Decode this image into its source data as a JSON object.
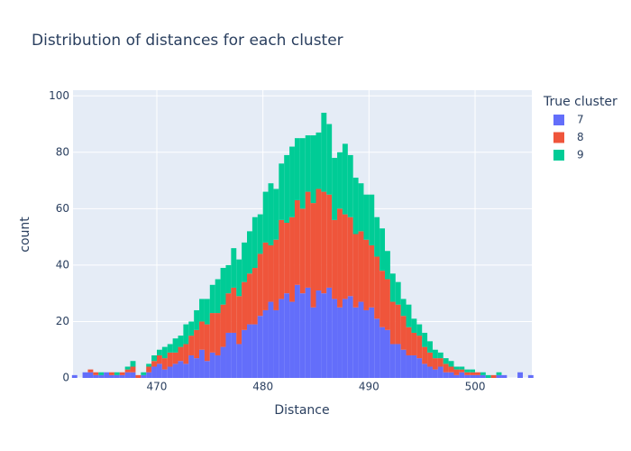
{
  "chart_data": {
    "type": "histogram",
    "title": "Distribution of distances for each cluster",
    "x_label": "Distance",
    "y_label": "count",
    "legend_title": "True cluster",
    "legend_position": "right",
    "grid": true,
    "barmode": "stack",
    "bins": [
      462,
      462.5,
      463,
      463.5,
      464,
      464.5,
      465,
      465.5,
      466,
      466.5,
      467,
      467.5,
      468,
      468.5,
      469,
      469.5,
      470,
      470.5,
      471,
      471.5,
      472,
      472.5,
      473,
      473.5,
      474,
      474.5,
      475,
      475.5,
      476,
      476.5,
      477,
      477.5,
      478,
      478.5,
      479,
      479.5,
      480,
      480.5,
      481,
      481.5,
      482,
      482.5,
      483,
      483.5,
      484,
      484.5,
      485,
      485.5,
      486,
      486.5,
      487,
      487.5,
      488,
      488.5,
      489,
      489.5,
      490,
      490.5,
      491,
      491.5,
      492,
      492.5,
      493,
      493.5,
      494,
      494.5,
      495,
      495.5,
      496,
      496.5,
      497,
      497.5,
      498,
      498.5,
      499,
      499.5,
      500,
      500.5,
      501,
      501.5,
      502,
      502.5,
      503,
      503.5,
      504,
      504.5,
      505,
      505.5
    ],
    "series": [
      {
        "name": "7",
        "color": "#636efa",
        "values": [
          1,
          0,
          2,
          2,
          1,
          1,
          2,
          1,
          1,
          1,
          2,
          2,
          0,
          1,
          2,
          4,
          5,
          3,
          4,
          5,
          6,
          5,
          8,
          7,
          10,
          6,
          9,
          8,
          11,
          16,
          16,
          12,
          17,
          19,
          19,
          22,
          24,
          27,
          24,
          28,
          30,
          27,
          33,
          30,
          32,
          25,
          31,
          30,
          32,
          28,
          25,
          28,
          29,
          25,
          27,
          24,
          25,
          21,
          18,
          17,
          12,
          12,
          10,
          8,
          8,
          7,
          5,
          4,
          3,
          4,
          2,
          2,
          1,
          2,
          1,
          1,
          1,
          1,
          0,
          0,
          1,
          1,
          0,
          0,
          2,
          0,
          1
        ]
      },
      {
        "name": "8",
        "color": "#EF553B",
        "values": [
          0,
          0,
          0,
          1,
          1,
          0,
          0,
          1,
          0,
          1,
          1,
          2,
          1,
          0,
          2,
          2,
          3,
          4,
          5,
          4,
          5,
          7,
          7,
          10,
          10,
          13,
          14,
          15,
          15,
          14,
          16,
          17,
          17,
          18,
          20,
          22,
          24,
          20,
          25,
          28,
          25,
          30,
          30,
          30,
          34,
          37,
          36,
          36,
          33,
          28,
          35,
          30,
          28,
          26,
          25,
          25,
          22,
          22,
          20,
          18,
          15,
          14,
          12,
          10,
          8,
          8,
          6,
          5,
          4,
          3,
          3,
          2,
          2,
          1,
          1,
          1,
          1,
          0,
          0,
          1,
          0,
          0,
          0,
          0,
          0,
          0,
          0
        ]
      },
      {
        "name": "9",
        "color": "#00cc96",
        "values": [
          0,
          0,
          0,
          0,
          0,
          1,
          0,
          0,
          1,
          0,
          1,
          2,
          0,
          1,
          1,
          2,
          2,
          4,
          3,
          5,
          4,
          7,
          5,
          7,
          8,
          9,
          10,
          12,
          13,
          10,
          14,
          13,
          14,
          15,
          18,
          14,
          18,
          22,
          18,
          20,
          24,
          25,
          22,
          25,
          20,
          24,
          20,
          28,
          25,
          22,
          20,
          25,
          22,
          20,
          17,
          16,
          18,
          14,
          15,
          10,
          10,
          8,
          6,
          8,
          5,
          4,
          5,
          4,
          3,
          2,
          2,
          2,
          1,
          1,
          1,
          1,
          0,
          1,
          1,
          0,
          1,
          0,
          0,
          0,
          0,
          0,
          0
        ]
      }
    ],
    "xlim": [
      462.1,
      505.35
    ],
    "ylim": [
      0,
      102
    ],
    "xticks": [
      470,
      480,
      490,
      500
    ],
    "yticks": [
      0,
      20,
      40,
      60,
      80,
      100
    ]
  }
}
